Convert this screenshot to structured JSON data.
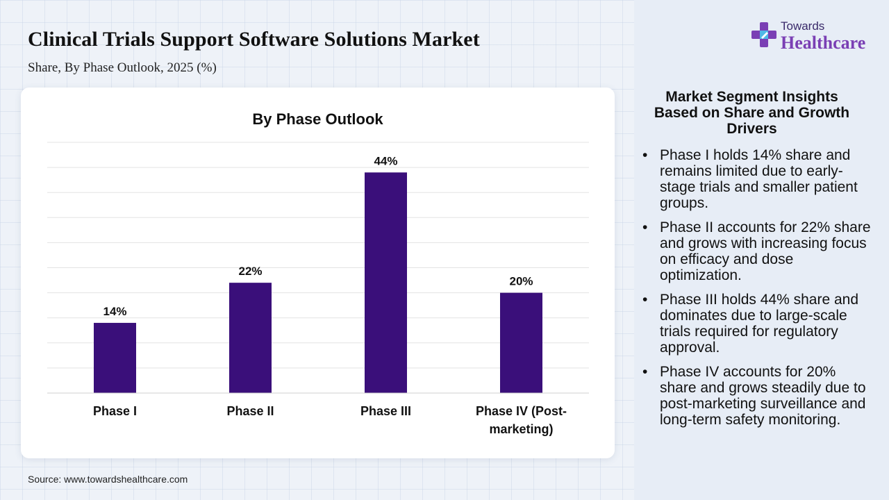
{
  "title": "Clinical Trials Support Software Solutions Market",
  "subtitle": "Share, By Phase Outlook, 2025 (%)",
  "source": "Source: www.towardshealthcare.com",
  "logo": {
    "top": "Towards",
    "bottom": "Healthcare",
    "icon": "medical-cross-icon"
  },
  "insights": {
    "title": "Market Segment Insights Based on Share and Growth Drivers",
    "items": [
      "Phase I holds 14% share and remains limited due to early-stage trials and smaller patient groups.",
      "Phase II accounts for 22% share and grows with increasing focus on efficacy and dose optimization.",
      "Phase III holds 44% share and dominates due to large-scale trials required for regulatory approval.",
      "Phase IV accounts for 20% share and grows steadily due to post-marketing surveillance and long-term safety monitoring."
    ]
  },
  "colors": {
    "bar": "#3a0f7a",
    "accent": "#7a3fb4",
    "panel": "#e7edf6"
  },
  "chart_data": {
    "type": "bar",
    "title": "By Phase Outlook",
    "categories": [
      "Phase I",
      "Phase II",
      "Phase III",
      "Phase IV (Post-marketing)"
    ],
    "category_lines": [
      [
        "Phase I"
      ],
      [
        "Phase II"
      ],
      [
        "Phase III"
      ],
      [
        "Phase IV (Post-",
        "marketing)"
      ]
    ],
    "values": [
      14,
      22,
      44,
      20
    ],
    "value_labels": [
      "14%",
      "22%",
      "44%",
      "20%"
    ],
    "ylim": [
      0,
      50
    ],
    "grid": true,
    "xlabel": "",
    "ylabel": ""
  }
}
